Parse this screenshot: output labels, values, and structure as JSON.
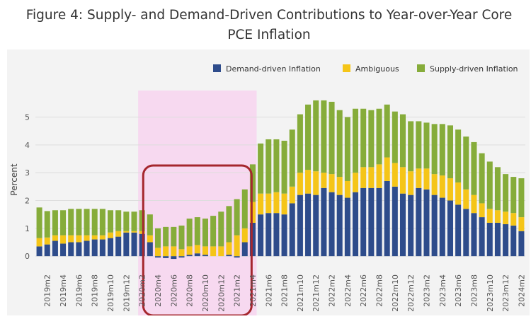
{
  "title": "Figure 4: Supply- and Demand-Driven Contributions to Year-over-Year Core PCE Inflation",
  "colors": {
    "demand": "#2e4c8b",
    "ambiguous": "#f5c518",
    "supply": "#86ac3a",
    "highlight_fill": "#f7d9f0",
    "box_stroke": "#a5272e"
  },
  "chart_data": {
    "type": "bar",
    "stacked": true,
    "title": "Figure 4: Supply- and Demand-Driven Contributions to Year-over-Year Core PCE Inflation",
    "xlabel": "",
    "ylabel": "Percent",
    "ylim": [
      -0.2,
      5.7
    ],
    "yticks": [
      0,
      1,
      2,
      3,
      4,
      5
    ],
    "grid": true,
    "legend_position": "top-right",
    "highlight": {
      "from": "2020m2",
      "to": "2021m4"
    },
    "box": {
      "from": "2020m3",
      "to": "2021m3"
    },
    "categories": [
      "2019m1",
      "2019m2",
      "2019m3",
      "2019m4",
      "2019m5",
      "2019m6",
      "2019m7",
      "2019m8",
      "2019m9",
      "2019m10",
      "2019m11",
      "2019m12",
      "2020m1",
      "2020m2",
      "2020m3",
      "2020m4",
      "2020m5",
      "2020m6",
      "2020m7",
      "2020m8",
      "2020m9",
      "2020m10",
      "2020m11",
      "2020m12",
      "2021m1",
      "2021m2",
      "2021m3",
      "2021m4",
      "2021m5",
      "2021m6",
      "2021m7",
      "2021m8",
      "2021m9",
      "2021m10",
      "2021m11",
      "2021m12",
      "2022m1",
      "2022m2",
      "2022m3",
      "2022m4",
      "2022m5",
      "2022m6",
      "2022m7",
      "2022m8",
      "2022m9",
      "2022m10",
      "2022m11",
      "2022m12",
      "2023m1",
      "2023m2",
      "2023m3",
      "2023m4",
      "2023m5",
      "2023m6",
      "2023m7",
      "2023m8",
      "2023m9",
      "2023m10",
      "2023m11",
      "2023m12",
      "2024m1",
      "2024m2"
    ],
    "tick_labels": [
      "2019m2",
      "2019m4",
      "2019m6",
      "2019m8",
      "2019m10",
      "2019m12",
      "2020m2",
      "2020m4",
      "2020m6",
      "2020m8",
      "2020m10",
      "2020m12",
      "2021m2",
      "2021m4",
      "2021m6",
      "2021m8",
      "2021m10",
      "2021m12",
      "2022m2",
      "2022m4",
      "2022m6",
      "2022m8",
      "2022m10",
      "2022m12",
      "2023m2",
      "2023m4",
      "2023m6",
      "2023m8",
      "2023m10",
      "2023m12",
      "2024m2"
    ],
    "series": [
      {
        "name": "Demand-driven Inflation",
        "values": [
          0.35,
          0.42,
          0.55,
          0.45,
          0.5,
          0.5,
          0.55,
          0.6,
          0.6,
          0.65,
          0.7,
          0.85,
          0.85,
          0.8,
          0.5,
          -0.05,
          -0.07,
          -0.1,
          -0.05,
          0.05,
          0.1,
          0.05,
          0.0,
          0.0,
          0.05,
          -0.05,
          0.5,
          1.2,
          1.5,
          1.55,
          1.55,
          1.5,
          1.9,
          2.2,
          2.25,
          2.2,
          2.45,
          2.3,
          2.2,
          2.1,
          2.3,
          2.45,
          2.45,
          2.45,
          2.7,
          2.5,
          2.25,
          2.2,
          2.45,
          2.4,
          2.2,
          2.1,
          2.0,
          1.85,
          1.7,
          1.55,
          1.4,
          1.2,
          1.2,
          1.15,
          1.1,
          0.9
        ]
      },
      {
        "name": "Ambiguous",
        "values": [
          0.3,
          0.25,
          0.2,
          0.3,
          0.25,
          0.25,
          0.2,
          0.15,
          0.15,
          0.2,
          0.2,
          0.05,
          0.05,
          0.1,
          0.25,
          0.3,
          0.35,
          0.35,
          0.25,
          0.3,
          0.3,
          0.3,
          0.35,
          0.35,
          0.45,
          0.75,
          0.5,
          0.75,
          0.75,
          0.7,
          0.75,
          0.75,
          0.6,
          0.8,
          0.85,
          0.85,
          0.55,
          0.65,
          0.65,
          0.6,
          0.7,
          0.75,
          0.75,
          0.85,
          0.85,
          0.85,
          0.95,
          0.85,
          0.7,
          0.75,
          0.75,
          0.8,
          0.8,
          0.8,
          0.7,
          0.65,
          0.5,
          0.5,
          0.45,
          0.45,
          0.45,
          0.5
        ]
      },
      {
        "name": "Supply-driven Inflation",
        "values": [
          1.1,
          0.95,
          0.9,
          0.9,
          0.95,
          0.95,
          0.95,
          0.95,
          0.95,
          0.8,
          0.75,
          0.7,
          0.7,
          0.75,
          0.75,
          0.7,
          0.7,
          0.7,
          0.85,
          1.0,
          1.0,
          1.0,
          1.1,
          1.25,
          1.3,
          1.3,
          1.4,
          1.35,
          1.8,
          1.95,
          1.9,
          1.9,
          2.05,
          2.1,
          2.35,
          2.55,
          2.6,
          2.6,
          2.4,
          2.3,
          2.3,
          2.1,
          2.05,
          2.0,
          1.9,
          1.85,
          1.9,
          1.8,
          1.7,
          1.65,
          1.8,
          1.85,
          1.9,
          1.9,
          1.9,
          1.9,
          1.8,
          1.7,
          1.55,
          1.35,
          1.3,
          1.4
        ]
      }
    ]
  }
}
